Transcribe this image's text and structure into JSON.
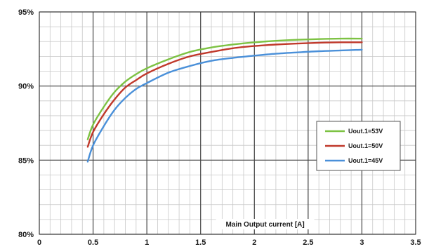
{
  "chart_data": {
    "type": "line",
    "title": "",
    "xlabel": "Main Output current [A]",
    "ylabel": "",
    "xlim": [
      0,
      3.5
    ],
    "ylim": [
      80,
      95
    ],
    "x_major_ticks": [
      0,
      0.5,
      1,
      1.5,
      2,
      2.5,
      3,
      3.5
    ],
    "x_tick_labels": [
      "0",
      "0.5",
      "1",
      "1.5",
      "2",
      "2.5",
      "3",
      "3.5"
    ],
    "y_major_ticks": [
      80,
      85,
      90,
      95
    ],
    "y_tick_labels": [
      "80%",
      "85%",
      "90%",
      "95%"
    ],
    "x_minor_step": 0.1,
    "y_minor_step": 1,
    "grid": true,
    "legend_position": "right",
    "series": [
      {
        "name": "Uout.1=53V",
        "color": "#7dc243",
        "x": [
          0.45,
          0.5,
          0.6,
          0.7,
          0.8,
          0.9,
          1.0,
          1.2,
          1.4,
          1.6,
          1.8,
          2.0,
          2.2,
          2.4,
          2.6,
          2.8,
          3.0
        ],
        "y": [
          86.4,
          87.4,
          88.6,
          89.6,
          90.3,
          90.8,
          91.2,
          91.8,
          92.3,
          92.6,
          92.8,
          92.95,
          93.05,
          93.12,
          93.17,
          93.2,
          93.2
        ]
      },
      {
        "name": "Uout.1=50V",
        "color": "#c0392b",
        "x": [
          0.45,
          0.5,
          0.6,
          0.7,
          0.8,
          0.9,
          1.0,
          1.2,
          1.4,
          1.6,
          1.8,
          2.0,
          2.2,
          2.4,
          2.6,
          2.8,
          3.0
        ],
        "y": [
          85.9,
          86.9,
          88.1,
          89.1,
          89.9,
          90.4,
          90.85,
          91.5,
          92.0,
          92.3,
          92.55,
          92.7,
          92.8,
          92.87,
          92.92,
          92.95,
          92.95
        ]
      },
      {
        "name": "Uout.1=45V",
        "color": "#4a90d9",
        "x": [
          0.45,
          0.5,
          0.6,
          0.7,
          0.8,
          0.9,
          1.0,
          1.2,
          1.4,
          1.6,
          1.8,
          2.0,
          2.2,
          2.4,
          2.6,
          2.8,
          3.0
        ],
        "y": [
          84.9,
          86.0,
          87.3,
          88.4,
          89.2,
          89.8,
          90.2,
          90.9,
          91.35,
          91.7,
          91.9,
          92.05,
          92.18,
          92.27,
          92.35,
          92.4,
          92.45
        ]
      }
    ]
  }
}
